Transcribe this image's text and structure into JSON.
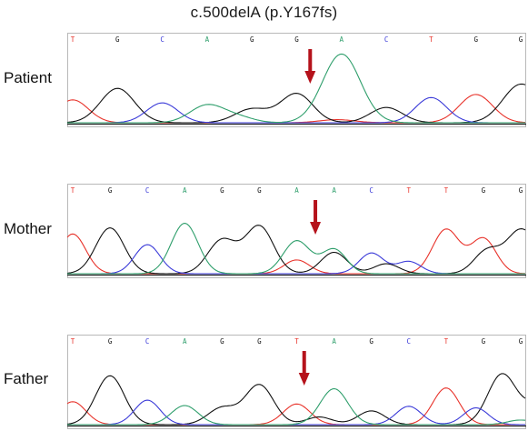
{
  "title": "c.500delA (p.Y167fs)",
  "base_colors": {
    "T": "#e8332b",
    "G": "#111111",
    "C": "#3a3ad8",
    "A": "#2e9e6b"
  },
  "arrow_color": "#b5121b",
  "panels": [
    {
      "label": "Patient",
      "bases": [
        "T",
        "G",
        "C",
        "A",
        "G",
        "G",
        "A",
        "C",
        "T",
        "G",
        "G"
      ],
      "arrow_index": 5.3,
      "peaks": [
        {
          "base": "T",
          "pos": 0.0,
          "h": 0.3,
          "w": 0.35
        },
        {
          "base": "G",
          "pos": 1.0,
          "h": 0.45,
          "w": 0.38
        },
        {
          "base": "C",
          "pos": 2.0,
          "h": 0.26,
          "w": 0.35
        },
        {
          "base": "A",
          "pos": 3.0,
          "h": 0.23,
          "w": 0.38
        },
        {
          "base": "G",
          "pos": 4.0,
          "h": 0.18,
          "w": 0.38
        },
        {
          "base": "G",
          "pos": 5.0,
          "h": 0.38,
          "w": 0.36
        },
        {
          "base": "A",
          "pos": 6.0,
          "h": 0.9,
          "w": 0.42
        },
        {
          "base": "G",
          "pos": 7.0,
          "h": 0.2,
          "w": 0.36
        },
        {
          "base": "C",
          "pos": 8.0,
          "h": 0.33,
          "w": 0.35
        },
        {
          "base": "T",
          "pos": 9.0,
          "h": 0.37,
          "w": 0.37
        },
        {
          "base": "G",
          "pos": 10.0,
          "h": 0.5,
          "w": 0.4
        },
        {
          "base": "G",
          "pos": 11.0,
          "h": 0.3,
          "w": 0.36
        },
        {
          "base": "G",
          "pos": 12.0,
          "h": 0.42,
          "w": 0.38
        },
        {
          "base": "A",
          "pos": 3.7,
          "h": 0.07,
          "w": 0.35
        },
        {
          "base": "T",
          "pos": 5.9,
          "h": 0.04,
          "w": 0.4
        },
        {
          "base": "G",
          "pos": 11.6,
          "h": 0.1,
          "w": 0.35
        }
      ]
    },
    {
      "label": "Mother",
      "bases": [
        "T",
        "G",
        "C",
        "A",
        "G",
        "G",
        "A",
        "A",
        "C",
        "T",
        "T",
        "G",
        "G"
      ],
      "arrow_index": 6.5,
      "peaks": [
        {
          "base": "T",
          "pos": 0.0,
          "h": 0.52,
          "w": 0.35
        },
        {
          "base": "G",
          "pos": 1.0,
          "h": 0.6,
          "w": 0.38
        },
        {
          "base": "C",
          "pos": 2.0,
          "h": 0.38,
          "w": 0.34
        },
        {
          "base": "A",
          "pos": 3.0,
          "h": 0.66,
          "w": 0.36
        },
        {
          "base": "G",
          "pos": 4.0,
          "h": 0.44,
          "w": 0.38
        },
        {
          "base": "G",
          "pos": 5.0,
          "h": 0.62,
          "w": 0.38
        },
        {
          "base": "A",
          "pos": 6.0,
          "h": 0.43,
          "w": 0.36
        },
        {
          "base": "T",
          "pos": 6.0,
          "h": 0.18,
          "w": 0.34
        },
        {
          "base": "A",
          "pos": 7.0,
          "h": 0.32,
          "w": 0.33
        },
        {
          "base": "G",
          "pos": 7.0,
          "h": 0.28,
          "w": 0.35
        },
        {
          "base": "C",
          "pos": 8.0,
          "h": 0.27,
          "w": 0.33
        },
        {
          "base": "G",
          "pos": 8.4,
          "h": 0.13,
          "w": 0.34
        },
        {
          "base": "C",
          "pos": 9.0,
          "h": 0.16,
          "w": 0.33
        },
        {
          "base": "T",
          "pos": 10.0,
          "h": 0.58,
          "w": 0.36
        },
        {
          "base": "T",
          "pos": 11.0,
          "h": 0.46,
          "w": 0.34
        },
        {
          "base": "G",
          "pos": 11.1,
          "h": 0.3,
          "w": 0.35
        },
        {
          "base": "G",
          "pos": 12.0,
          "h": 0.56,
          "w": 0.38
        },
        {
          "base": "G",
          "pos": 13.0,
          "h": 0.53,
          "w": 0.38
        }
      ]
    },
    {
      "label": "Father",
      "bases": [
        "T",
        "G",
        "C",
        "A",
        "G",
        "G",
        "T",
        "A",
        "G",
        "C",
        "T",
        "G",
        "G"
      ],
      "arrow_index": 6.2,
      "peaks": [
        {
          "base": "T",
          "pos": 0.0,
          "h": 0.3,
          "w": 0.35
        },
        {
          "base": "G",
          "pos": 1.0,
          "h": 0.64,
          "w": 0.38
        },
        {
          "base": "C",
          "pos": 2.0,
          "h": 0.32,
          "w": 0.34
        },
        {
          "base": "A",
          "pos": 3.0,
          "h": 0.25,
          "w": 0.36
        },
        {
          "base": "G",
          "pos": 4.0,
          "h": 0.22,
          "w": 0.38
        },
        {
          "base": "G",
          "pos": 5.0,
          "h": 0.52,
          "w": 0.38
        },
        {
          "base": "T",
          "pos": 6.0,
          "h": 0.27,
          "w": 0.36
        },
        {
          "base": "A",
          "pos": 7.0,
          "h": 0.47,
          "w": 0.37
        },
        {
          "base": "G",
          "pos": 8.0,
          "h": 0.18,
          "w": 0.36
        },
        {
          "base": "C",
          "pos": 9.0,
          "h": 0.24,
          "w": 0.34
        },
        {
          "base": "T",
          "pos": 10.0,
          "h": 0.48,
          "w": 0.35
        },
        {
          "base": "C",
          "pos": 10.8,
          "h": 0.22,
          "w": 0.33
        },
        {
          "base": "G",
          "pos": 11.5,
          "h": 0.66,
          "w": 0.38
        },
        {
          "base": "G",
          "pos": 12.5,
          "h": 0.28,
          "w": 0.38
        },
        {
          "base": "A",
          "pos": 12.0,
          "h": 0.06,
          "w": 0.35
        },
        {
          "base": "G",
          "pos": 6.6,
          "h": 0.1,
          "w": 0.35
        }
      ]
    }
  ]
}
